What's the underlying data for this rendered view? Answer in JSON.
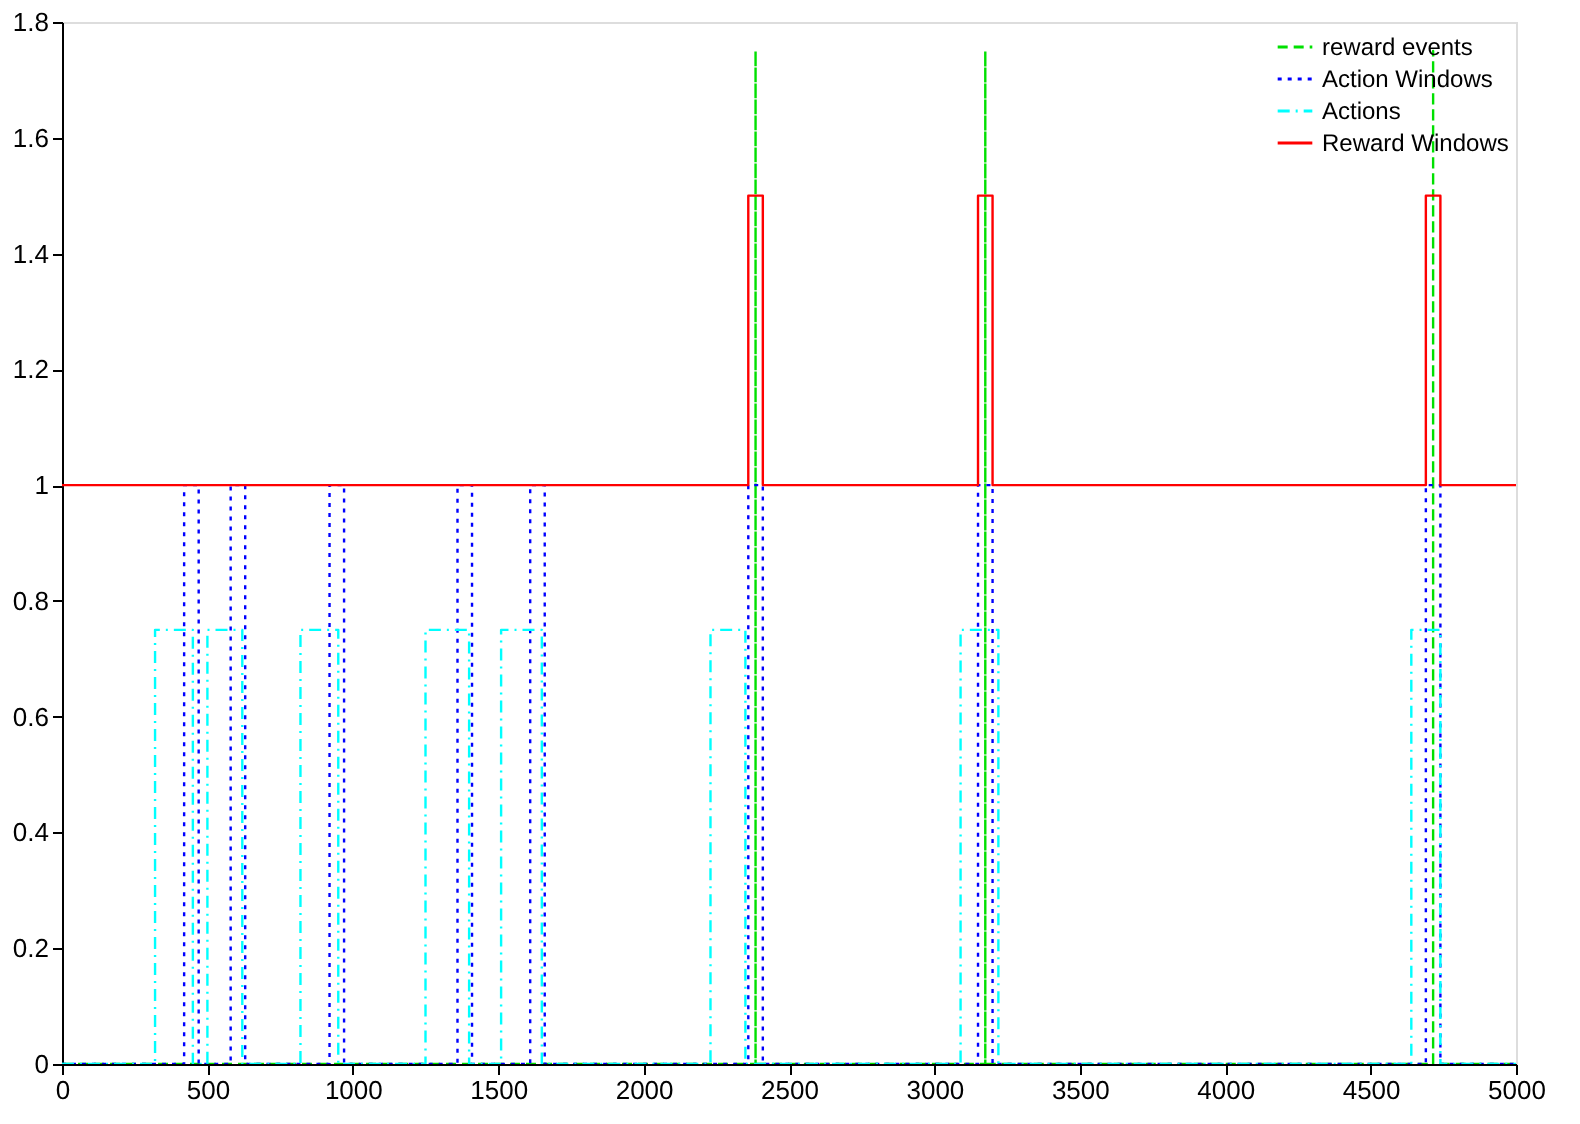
{
  "chart_data": {
    "type": "line",
    "xlim": [
      0,
      5000
    ],
    "ylim": [
      0,
      1.8
    ],
    "xticks": [
      0,
      500,
      1000,
      1500,
      2000,
      2500,
      3000,
      3500,
      4000,
      4500,
      5000
    ],
    "yticks": [
      0,
      0.2,
      0.4,
      0.6,
      0.8,
      1,
      1.2,
      1.4,
      1.6,
      1.8
    ],
    "grid": false,
    "legend": "top right",
    "marker": "none",
    "series": [
      {
        "name": "reward events",
        "color": "#00e000",
        "line_style": "dashed",
        "x": [
          0,
          2385,
          2385,
          2385,
          3175,
          3175,
          3175,
          4715,
          4715,
          4715,
          5000
        ],
        "values": [
          0,
          0,
          1.75,
          0,
          0,
          1.75,
          0,
          0,
          1.75,
          0,
          0
        ]
      },
      {
        "name": "Action Windows",
        "color": "#0000ff",
        "line_style": "dotted",
        "x": [
          0,
          420,
          420,
          470,
          470,
          580,
          580,
          630,
          630,
          920,
          920,
          970,
          970,
          1360,
          1360,
          1410,
          1410,
          1610,
          1610,
          1660,
          1660,
          2360,
          2360,
          2410,
          2410,
          3150,
          3150,
          3200,
          3200,
          4690,
          4690,
          4740,
          4740,
          5000
        ],
        "values": [
          0,
          0,
          1,
          1,
          0,
          0,
          1,
          1,
          0,
          0,
          1,
          1,
          0,
          0,
          1,
          1,
          0,
          0,
          1,
          1,
          0,
          0,
          1,
          1,
          0,
          0,
          1,
          1,
          0,
          0,
          1,
          1,
          0,
          0
        ]
      },
      {
        "name": "Actions",
        "color": "#00ffff",
        "line_style": "dashdot",
        "x": [
          0,
          320,
          320,
          450,
          450,
          500,
          500,
          620,
          620,
          820,
          820,
          950,
          950,
          1250,
          1250,
          1400,
          1400,
          1510,
          1510,
          1650,
          1650,
          2230,
          2230,
          2350,
          2350,
          3090,
          3090,
          3220,
          3220,
          4640,
          4640,
          4740,
          4740,
          5000
        ],
        "values": [
          0,
          0,
          0.75,
          0.75,
          0,
          0,
          0.75,
          0.75,
          0,
          0,
          0.75,
          0.75,
          0,
          0,
          0.75,
          0.75,
          0,
          0,
          0.75,
          0.75,
          0,
          0,
          0.75,
          0.75,
          0,
          0,
          0.75,
          0.75,
          0,
          0,
          0.75,
          0.75,
          0,
          0
        ]
      },
      {
        "name": "Reward Windows",
        "color": "#ff0000",
        "line_style": "solid",
        "x": [
          0,
          2360,
          2360,
          2410,
          2410,
          3150,
          3150,
          3200,
          3200,
          4690,
          4690,
          4740,
          4740,
          5000
        ],
        "values": [
          1,
          1,
          1.5,
          1.5,
          1,
          1,
          1.5,
          1.5,
          1,
          1,
          1.5,
          1.5,
          1,
          1
        ]
      }
    ]
  }
}
